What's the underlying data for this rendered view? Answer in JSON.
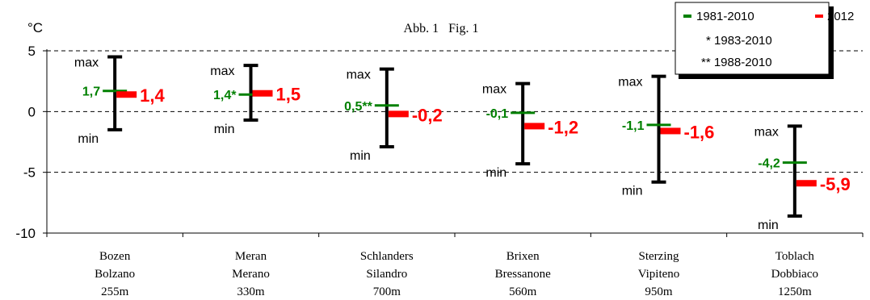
{
  "chart_data": {
    "type": "range",
    "unit": "°C",
    "title": "Abb. 1   Fig. 1",
    "ylim": [
      -10,
      5
    ],
    "yticks": [
      5,
      0,
      -5,
      -10
    ],
    "grid": "dashed horizontal at 5, 0, -5",
    "legend": {
      "placement": "top-right",
      "entries": [
        {
          "name": "1981-2010",
          "color": "#008000"
        },
        {
          "name": "2012",
          "color": "#ff0000"
        }
      ],
      "notes": [
        "* 1983-2010",
        "** 1988-2010"
      ]
    },
    "colors": {
      "mean_reference": "#008000",
      "year_2012": "#ff0000",
      "range": "#000000"
    },
    "range_labels": {
      "max": "max",
      "min": "min"
    },
    "stations": [
      {
        "line1": "Bozen",
        "line2": "Bolzano",
        "altitude": "255m",
        "max": 4.5,
        "min": -1.5,
        "mean_1981_2010": 1.7,
        "mean_label": "1,7",
        "value_2012": 1.4,
        "label_2012": "1,4"
      },
      {
        "line1": "Meran",
        "line2": "Merano",
        "altitude": "330m",
        "max": 3.8,
        "min": -0.7,
        "mean_1981_2010": 1.4,
        "mean_label": "1,4*",
        "value_2012": 1.5,
        "label_2012": "1,5"
      },
      {
        "line1": "Schlanders",
        "line2": "Silandro",
        "altitude": "700m",
        "max": 3.5,
        "min": -2.9,
        "mean_1981_2010": 0.5,
        "mean_label": "0,5**",
        "value_2012": -0.2,
        "label_2012": "-0,2"
      },
      {
        "line1": "Brixen",
        "line2": "Bressanone",
        "altitude": "560m",
        "max": 2.3,
        "min": -4.3,
        "mean_1981_2010": -0.1,
        "mean_label": "-0,1",
        "value_2012": -1.2,
        "label_2012": "-1,2"
      },
      {
        "line1": "Sterzing",
        "line2": "Vipiteno",
        "altitude": "950m",
        "max": 2.9,
        "min": -5.8,
        "mean_1981_2010": -1.1,
        "mean_label": "-1,1",
        "value_2012": -1.6,
        "label_2012": "-1,6"
      },
      {
        "line1": "Toblach",
        "line2": "Dobbiaco",
        "altitude": "1250m",
        "max": -1.2,
        "min": -8.6,
        "mean_1981_2010": -4.2,
        "mean_label": "-4,2",
        "value_2012": -5.9,
        "label_2012": "-5,9"
      }
    ]
  }
}
